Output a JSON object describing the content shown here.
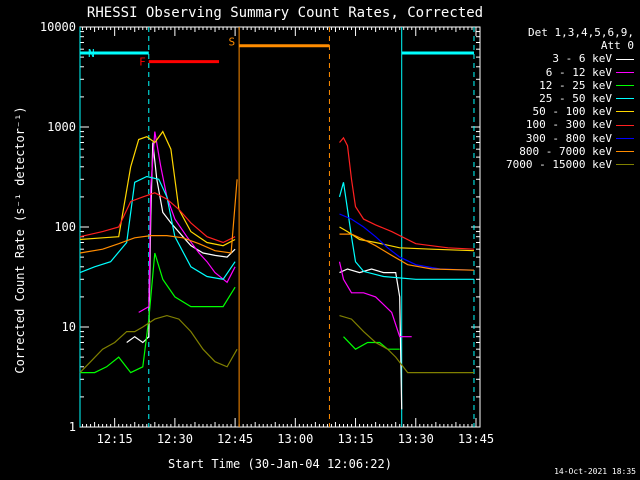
{
  "chart_data": {
    "type": "line",
    "title": "RHESSI Observing Summary Count Rates, Corrected",
    "xlabel": "Start Time (30-Jan-04 12:06:22)",
    "ylabel": "Corrected Count Rate (s⁻¹ detector⁻¹)",
    "y_scale": "log",
    "ylim": [
      1,
      10000
    ],
    "xlim": [
      "12:06:22",
      "13:46:00"
    ],
    "y_ticks": [
      "1",
      "10",
      "100",
      "1000",
      "10000"
    ],
    "x_ticks": [
      "12:15",
      "12:30",
      "12:45",
      "13:00",
      "13:15",
      "13:30",
      "13:45"
    ],
    "legend_header": [
      "Det 1,3,4,5,6,9,",
      "Att 0"
    ],
    "timestamp": "14-Oct-2021 18:35",
    "flag_labels": {
      "night": "N",
      "flare": "F",
      "saa": "S"
    },
    "flags": [
      {
        "label": "N",
        "color": "#00ffff",
        "start": "12:06:22",
        "end": "12:23:30",
        "level": 5500
      },
      {
        "label": "N",
        "color": "#00ffff",
        "start": "13:26:30",
        "end": "13:44:30",
        "level": 5500
      },
      {
        "label": "F",
        "color": "#ff0000",
        "start": "12:23:30",
        "end": "12:41:00",
        "level": 4500
      },
      {
        "label": "S",
        "color": "#ff8c00",
        "start": "12:46:00",
        "end": "13:08:30",
        "level": 6500
      }
    ],
    "vlines": [
      {
        "t": "12:06:22",
        "color": "#00ffff",
        "style": "solid"
      },
      {
        "t": "12:23:30",
        "color": "#00ffff",
        "style": "dashed"
      },
      {
        "t": "12:46:00",
        "color": "#ff8c00",
        "style": "solid"
      },
      {
        "t": "13:08:30",
        "color": "#ff8c00",
        "style": "dashed"
      },
      {
        "t": "13:26:30",
        "color": "#00ffff",
        "style": "solid"
      },
      {
        "t": "13:44:30",
        "color": "#00ffff",
        "style": "dashed"
      }
    ],
    "series": [
      {
        "name": "3 - 6 keV",
        "color": "#ffffff",
        "segments": [
          [
            [
              "12:18:00",
              7
            ],
            [
              "12:20:00",
              8
            ],
            [
              "12:22:00",
              7
            ],
            [
              "12:23:30",
              8
            ],
            [
              "12:24:00",
              130
            ],
            [
              "12:24:30",
              700
            ],
            [
              "12:25:30",
              300
            ],
            [
              "12:27:00",
              140
            ],
            [
              "12:29:00",
              110
            ],
            [
              "12:32:00",
              80
            ],
            [
              "12:34:00",
              65
            ],
            [
              "12:37:00",
              55
            ],
            [
              "12:40:00",
              52
            ],
            [
              "12:43:00",
              50
            ],
            [
              "12:45:00",
              60
            ]
          ],
          [
            [
              "13:11:00",
              35
            ],
            [
              "13:13:00",
              38
            ],
            [
              "13:16:00",
              35
            ],
            [
              "13:19:00",
              38
            ],
            [
              "13:22:00",
              35
            ],
            [
              "13:25:00",
              35
            ],
            [
              "13:26:00",
              20
            ],
            [
              "13:26:30",
              1.5
            ]
          ]
        ]
      },
      {
        "name": "6 - 12 keV",
        "color": "#ff00ff",
        "segments": [
          [
            [
              "12:21:00",
              14
            ],
            [
              "12:23:30",
              16
            ],
            [
              "12:24:00",
              250
            ],
            [
              "12:25:00",
              900
            ],
            [
              "12:26:30",
              400
            ],
            [
              "12:28:00",
              200
            ],
            [
              "12:30:00",
              120
            ],
            [
              "12:33:00",
              80
            ],
            [
              "12:36:00",
              55
            ],
            [
              "12:38:00",
              45
            ],
            [
              "12:40:00",
              35
            ],
            [
              "12:43:00",
              28
            ],
            [
              "12:45:00",
              40
            ]
          ],
          [
            [
              "13:11:00",
              45
            ],
            [
              "13:12:00",
              30
            ],
            [
              "13:14:00",
              22
            ],
            [
              "13:17:00",
              22
            ],
            [
              "13:20:00",
              20
            ],
            [
              "13:24:00",
              14
            ],
            [
              "13:26:00",
              8
            ],
            [
              "13:28:00",
              8
            ],
            [
              "13:29:00",
              8
            ]
          ]
        ]
      },
      {
        "name": "12 - 25 keV",
        "color": "#00ff00",
        "segments": [
          [
            [
              "12:06:22",
              3.5
            ],
            [
              "12:10:00",
              3.5
            ],
            [
              "12:13:00",
              4
            ],
            [
              "12:16:00",
              5
            ],
            [
              "12:19:00",
              3.5
            ],
            [
              "12:22:00",
              4
            ],
            [
              "12:23:30",
              12
            ],
            [
              "12:25:00",
              55
            ],
            [
              "12:27:00",
              30
            ],
            [
              "12:30:00",
              20
            ],
            [
              "12:34:00",
              16
            ],
            [
              "12:38:00",
              16
            ],
            [
              "12:42:00",
              16
            ],
            [
              "12:45:00",
              25
            ]
          ],
          [
            [
              "13:12:00",
              8
            ],
            [
              "13:15:00",
              6
            ],
            [
              "13:18:00",
              7
            ],
            [
              "13:21:00",
              7
            ],
            [
              "13:23:00",
              6
            ],
            [
              "13:26:00",
              6
            ]
          ]
        ]
      },
      {
        "name": "25 - 50 keV",
        "color": "#00ffff",
        "segments": [
          [
            [
              "12:06:22",
              35
            ],
            [
              "12:10:00",
              40
            ],
            [
              "12:14:00",
              45
            ],
            [
              "12:18:00",
              70
            ],
            [
              "12:20:00",
              280
            ],
            [
              "12:23:00",
              320
            ],
            [
              "12:26:00",
              300
            ],
            [
              "12:28:00",
              200
            ],
            [
              "12:30:00",
              80
            ],
            [
              "12:34:00",
              40
            ],
            [
              "12:38:00",
              32
            ],
            [
              "12:42:00",
              30
            ],
            [
              "12:45:00",
              45
            ]
          ],
          [
            [
              "13:11:00",
              200
            ],
            [
              "13:12:00",
              280
            ],
            [
              "13:13:00",
              150
            ],
            [
              "13:14:00",
              80
            ],
            [
              "13:15:00",
              45
            ],
            [
              "13:17:00",
              36
            ],
            [
              "13:22:00",
              32
            ],
            [
              "13:30:00",
              30
            ],
            [
              "13:38:00",
              30
            ],
            [
              "13:44:30",
              30
            ]
          ]
        ]
      },
      {
        "name": "50 - 100 keV",
        "color": "#ffd700",
        "segments": [
          [
            [
              "12:06:22",
              75
            ],
            [
              "12:12:00",
              78
            ],
            [
              "12:16:00",
              80
            ],
            [
              "12:19:00",
              400
            ],
            [
              "12:21:00",
              750
            ],
            [
              "12:23:00",
              800
            ],
            [
              "12:25:00",
              700
            ],
            [
              "12:27:00",
              900
            ],
            [
              "12:29:00",
              600
            ],
            [
              "12:31:00",
              150
            ],
            [
              "12:34:00",
              90
            ],
            [
              "12:38:00",
              70
            ],
            [
              "12:42:00",
              65
            ],
            [
              "12:45:00",
              75
            ]
          ],
          [
            [
              "13:11:00",
              100
            ],
            [
              "13:13:00",
              90
            ],
            [
              "13:16:00",
              75
            ],
            [
              "13:20:00",
              70
            ],
            [
              "13:26:00",
              62
            ],
            [
              "13:34:00",
              60
            ],
            [
              "13:44:30",
              58
            ]
          ]
        ]
      },
      {
        "name": "100 - 300 keV",
        "color": "#ff2020",
        "segments": [
          [
            [
              "12:06:22",
              80
            ],
            [
              "12:12:00",
              90
            ],
            [
              "12:16:00",
              100
            ],
            [
              "12:19:00",
              180
            ],
            [
              "12:22:00",
              200
            ],
            [
              "12:25:00",
              220
            ],
            [
              "12:28:00",
              190
            ],
            [
              "12:31:00",
              150
            ],
            [
              "12:34:00",
              110
            ],
            [
              "12:38:00",
              80
            ],
            [
              "12:42:00",
              70
            ],
            [
              "12:45:00",
              80
            ]
          ],
          [
            [
              "13:11:00",
              700
            ],
            [
              "13:12:00",
              780
            ],
            [
              "13:13:00",
              650
            ],
            [
              "13:14:00",
              300
            ],
            [
              "13:15:00",
              160
            ],
            [
              "13:17:00",
              120
            ],
            [
              "13:20:00",
              105
            ],
            [
              "13:24:00",
              90
            ],
            [
              "13:30:00",
              68
            ],
            [
              "13:38:00",
              62
            ],
            [
              "13:44:30",
              60
            ]
          ]
        ]
      },
      {
        "name": "300 - 800 keV",
        "color": "#0000ff",
        "segments": [
          [
            [
              "13:11:00",
              135
            ],
            [
              "13:14:00",
              120
            ],
            [
              "13:17:00",
              100
            ],
            [
              "13:20:00",
              80
            ],
            [
              "13:23:00",
              62
            ],
            [
              "13:26:00",
              50
            ],
            [
              "13:30:00",
              42
            ],
            [
              "13:36:00",
              38
            ],
            [
              "13:44:30",
              37
            ]
          ]
        ]
      },
      {
        "name": "800 - 7000 keV",
        "color": "#ff8c00",
        "segments": [
          [
            [
              "12:06:22",
              55
            ],
            [
              "12:12:00",
              60
            ],
            [
              "12:16:00",
              68
            ],
            [
              "12:20:00",
              78
            ],
            [
              "12:24:00",
              82
            ],
            [
              "12:28:00",
              82
            ],
            [
              "12:32:00",
              78
            ],
            [
              "12:36:00",
              68
            ],
            [
              "12:40:00",
              58
            ],
            [
              "12:44:00",
              55
            ],
            [
              "12:45:30",
              300
            ]
          ],
          [
            [
              "13:11:00",
              85
            ],
            [
              "13:14:00",
              85
            ],
            [
              "13:17:00",
              75
            ],
            [
              "13:20:00",
              65
            ],
            [
              "13:24:00",
              52
            ],
            [
              "13:28:00",
              42
            ],
            [
              "13:34:00",
              38
            ],
            [
              "13:44:30",
              37
            ]
          ]
        ]
      },
      {
        "name": "7000 - 15000 keV",
        "color": "#808000",
        "segments": [
          [
            [
              "12:06:22",
              3.5
            ],
            [
              "12:09:00",
              4.5
            ],
            [
              "12:12:00",
              6
            ],
            [
              "12:15:00",
              7
            ],
            [
              "12:18:00",
              9
            ],
            [
              "12:20:00",
              9
            ],
            [
              "12:22:00",
              10
            ],
            [
              "12:25:00",
              12
            ],
            [
              "12:28:00",
              13
            ],
            [
              "12:31:00",
              12
            ],
            [
              "12:34:00",
              9
            ],
            [
              "12:37:00",
              6
            ],
            [
              "12:40:00",
              4.5
            ],
            [
              "12:43:00",
              4
            ],
            [
              "12:45:30",
              6
            ]
          ],
          [
            [
              "13:11:00",
              13
            ],
            [
              "13:14:00",
              12
            ],
            [
              "13:17:00",
              9
            ],
            [
              "13:20:00",
              7
            ],
            [
              "13:23:00",
              6
            ],
            [
              "13:25:00",
              5
            ],
            [
              "13:28:00",
              3.5
            ],
            [
              "13:36:00",
              3.5
            ],
            [
              "13:44:30",
              3.5
            ]
          ]
        ]
      }
    ]
  }
}
